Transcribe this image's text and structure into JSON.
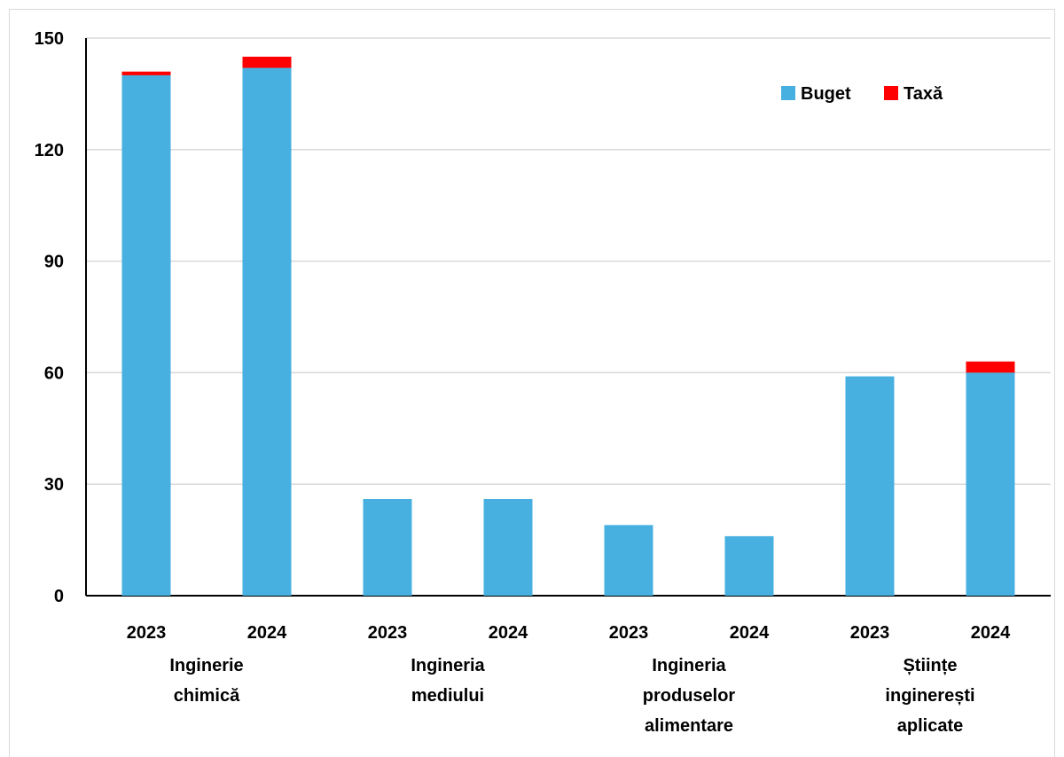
{
  "chart_data": {
    "type": "bar",
    "stacked": true,
    "title": "",
    "xlabel": "",
    "ylabel": "",
    "ylim": [
      0,
      150
    ],
    "yticks": [
      0,
      30,
      60,
      90,
      120,
      150
    ],
    "grid": true,
    "legend_position": "top-right",
    "categories": [
      "2023",
      "2024",
      "2023",
      "2024",
      "2023",
      "2024",
      "2023",
      "2024"
    ],
    "groups": [
      {
        "label": [
          "Inginerie",
          "chimică"
        ]
      },
      {
        "label": [
          "Ingineria",
          "mediului"
        ]
      },
      {
        "label": [
          "Ingineria",
          "produselor",
          "alimentare"
        ]
      },
      {
        "label": [
          "Științe",
          "inginerești",
          "aplicate"
        ]
      }
    ],
    "series": [
      {
        "name": "Buget",
        "color": "#47b0e0",
        "values": [
          140,
          142,
          26,
          26,
          19,
          16,
          59,
          60
        ]
      },
      {
        "name": "Taxă",
        "color": "#ff0000",
        "values": [
          1,
          3,
          0,
          0,
          0,
          0,
          0,
          3
        ]
      }
    ]
  }
}
